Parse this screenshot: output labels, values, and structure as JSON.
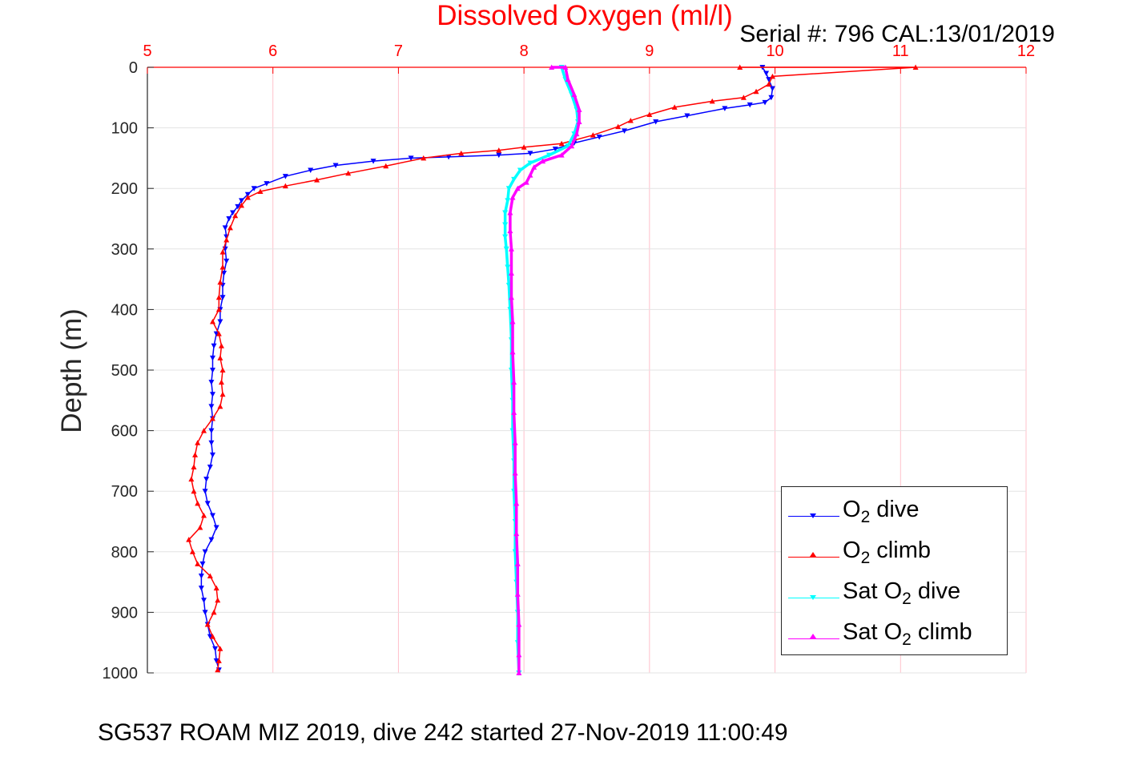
{
  "chart_data": {
    "type": "scatter",
    "title": "Dissolved Oxygen (ml/l)",
    "annotation": "Serial #: 796  CAL:13/01/2019",
    "caption": "SG537 ROAM MIZ 2019, dive 242 started 27-Nov-2019 11:00:49",
    "ylabel": "Depth (m)",
    "xlabel": "",
    "xlim": [
      5,
      12
    ],
    "ylim": [
      0,
      1000
    ],
    "y_reversed": true,
    "x_axis_position": "top",
    "x_ticks": [
      "5",
      "6",
      "7",
      "8",
      "9",
      "10",
      "11",
      "12"
    ],
    "y_ticks": [
      "0",
      "100",
      "200",
      "300",
      "400",
      "500",
      "600",
      "700",
      "800",
      "900",
      "1000"
    ],
    "grid": true,
    "legend_position": "bottom-right",
    "colors": {
      "title": "#ff0000",
      "x_ticks": "#ff0000",
      "grid": "#ffc0cb",
      "o2_dive": "#0000ff",
      "o2_climb": "#ff0000",
      "sat_dive": "#00ffff",
      "sat_climb": "#ff00ff"
    },
    "legend": [
      {
        "pre": "O",
        "sub": "2",
        "post": " dive"
      },
      {
        "pre": "O",
        "sub": "2",
        "post": " climb"
      },
      {
        "pre": "Sat O",
        "sub": "2",
        "post": " dive"
      },
      {
        "pre": "Sat O",
        "sub": "2",
        "post": " climb"
      }
    ],
    "series": [
      {
        "name": "O2 dive",
        "marker": "triangle-down",
        "points": [
          [
            9.9,
            0
          ],
          [
            9.93,
            10
          ],
          [
            9.95,
            20
          ],
          [
            9.98,
            35
          ],
          [
            9.97,
            50
          ],
          [
            9.92,
            58
          ],
          [
            9.8,
            62
          ],
          [
            9.6,
            68
          ],
          [
            9.3,
            80
          ],
          [
            9.05,
            90
          ],
          [
            8.8,
            105
          ],
          [
            8.6,
            115
          ],
          [
            8.4,
            125
          ],
          [
            8.25,
            135
          ],
          [
            8.05,
            142
          ],
          [
            7.8,
            145
          ],
          [
            7.4,
            148
          ],
          [
            7.1,
            150
          ],
          [
            6.8,
            155
          ],
          [
            6.5,
            162
          ],
          [
            6.3,
            170
          ],
          [
            6.1,
            180
          ],
          [
            5.95,
            192
          ],
          [
            5.85,
            200
          ],
          [
            5.8,
            210
          ],
          [
            5.75,
            220
          ],
          [
            5.72,
            230
          ],
          [
            5.68,
            240
          ],
          [
            5.65,
            250
          ],
          [
            5.62,
            265
          ],
          [
            5.63,
            280
          ],
          [
            5.62,
            300
          ],
          [
            5.63,
            320
          ],
          [
            5.61,
            340
          ],
          [
            5.6,
            360
          ],
          [
            5.6,
            380
          ],
          [
            5.58,
            400
          ],
          [
            5.58,
            420
          ],
          [
            5.55,
            440
          ],
          [
            5.53,
            460
          ],
          [
            5.52,
            480
          ],
          [
            5.52,
            500
          ],
          [
            5.51,
            520
          ],
          [
            5.52,
            540
          ],
          [
            5.51,
            560
          ],
          [
            5.52,
            580
          ],
          [
            5.51,
            600
          ],
          [
            5.51,
            620
          ],
          [
            5.52,
            640
          ],
          [
            5.5,
            660
          ],
          [
            5.47,
            680
          ],
          [
            5.46,
            700
          ],
          [
            5.48,
            720
          ],
          [
            5.52,
            740
          ],
          [
            5.55,
            760
          ],
          [
            5.51,
            780
          ],
          [
            5.46,
            800
          ],
          [
            5.44,
            820
          ],
          [
            5.43,
            840
          ],
          [
            5.43,
            860
          ],
          [
            5.45,
            880
          ],
          [
            5.46,
            900
          ],
          [
            5.48,
            920
          ],
          [
            5.5,
            940
          ],
          [
            5.54,
            960
          ],
          [
            5.55,
            980
          ],
          [
            5.57,
            995
          ]
        ]
      },
      {
        "name": "O2 climb",
        "marker": "triangle-up",
        "points": [
          [
            9.72,
            0
          ],
          [
            11.12,
            0
          ],
          [
            9.98,
            15
          ],
          [
            9.95,
            28
          ],
          [
            9.85,
            40
          ],
          [
            9.75,
            50
          ],
          [
            9.5,
            56
          ],
          [
            9.2,
            66
          ],
          [
            9.0,
            78
          ],
          [
            8.85,
            88
          ],
          [
            8.75,
            98
          ],
          [
            8.55,
            112
          ],
          [
            8.3,
            126
          ],
          [
            8.0,
            132
          ],
          [
            7.8,
            137
          ],
          [
            7.5,
            142
          ],
          [
            7.2,
            150
          ],
          [
            6.9,
            163
          ],
          [
            6.6,
            175
          ],
          [
            6.35,
            186
          ],
          [
            6.1,
            196
          ],
          [
            5.9,
            205
          ],
          [
            5.8,
            215
          ],
          [
            5.75,
            228
          ],
          [
            5.7,
            245
          ],
          [
            5.66,
            265
          ],
          [
            5.63,
            285
          ],
          [
            5.6,
            305
          ],
          [
            5.6,
            330
          ],
          [
            5.58,
            355
          ],
          [
            5.57,
            380
          ],
          [
            5.57,
            400
          ],
          [
            5.52,
            420
          ],
          [
            5.57,
            440
          ],
          [
            5.59,
            460
          ],
          [
            5.58,
            480
          ],
          [
            5.6,
            500
          ],
          [
            5.59,
            520
          ],
          [
            5.6,
            540
          ],
          [
            5.58,
            560
          ],
          [
            5.52,
            580
          ],
          [
            5.45,
            600
          ],
          [
            5.4,
            620
          ],
          [
            5.38,
            640
          ],
          [
            5.37,
            660
          ],
          [
            5.35,
            680
          ],
          [
            5.37,
            700
          ],
          [
            5.4,
            720
          ],
          [
            5.45,
            740
          ],
          [
            5.42,
            760
          ],
          [
            5.33,
            780
          ],
          [
            5.36,
            800
          ],
          [
            5.4,
            820
          ],
          [
            5.5,
            840
          ],
          [
            5.55,
            860
          ],
          [
            5.56,
            880
          ],
          [
            5.53,
            900
          ],
          [
            5.48,
            920
          ],
          [
            5.52,
            940
          ],
          [
            5.58,
            960
          ],
          [
            5.57,
            980
          ],
          [
            5.56,
            995
          ]
        ]
      },
      {
        "name": "Sat O2 dive",
        "marker": "triangle-down",
        "points": [
          [
            8.3,
            0
          ],
          [
            8.33,
            20
          ],
          [
            8.38,
            45
          ],
          [
            8.42,
            70
          ],
          [
            8.43,
            90
          ],
          [
            8.4,
            110
          ],
          [
            8.35,
            130
          ],
          [
            8.2,
            145
          ],
          [
            8.05,
            158
          ],
          [
            7.97,
            170
          ],
          [
            7.92,
            185
          ],
          [
            7.88,
            200
          ],
          [
            7.87,
            220
          ],
          [
            7.85,
            240
          ],
          [
            7.85,
            260
          ],
          [
            7.85,
            280
          ],
          [
            7.86,
            300
          ],
          [
            7.87,
            330
          ],
          [
            7.88,
            360
          ],
          [
            7.89,
            400
          ],
          [
            7.9,
            450
          ],
          [
            7.9,
            500
          ],
          [
            7.91,
            550
          ],
          [
            7.91,
            600
          ],
          [
            7.92,
            650
          ],
          [
            7.92,
            700
          ],
          [
            7.93,
            750
          ],
          [
            7.93,
            800
          ],
          [
            7.94,
            850
          ],
          [
            7.95,
            900
          ],
          [
            7.95,
            950
          ],
          [
            7.96,
            1000
          ]
        ]
      },
      {
        "name": "Sat O2 climb",
        "marker": "triangle-up",
        "points": [
          [
            8.22,
            0
          ],
          [
            8.33,
            0
          ],
          [
            8.35,
            20
          ],
          [
            8.4,
            45
          ],
          [
            8.44,
            70
          ],
          [
            8.44,
            90
          ],
          [
            8.42,
            110
          ],
          [
            8.38,
            130
          ],
          [
            8.3,
            145
          ],
          [
            8.15,
            155
          ],
          [
            8.08,
            165
          ],
          [
            8.05,
            178
          ],
          [
            8.02,
            190
          ],
          [
            7.95,
            200
          ],
          [
            7.91,
            215
          ],
          [
            7.89,
            240
          ],
          [
            7.89,
            270
          ],
          [
            7.9,
            300
          ],
          [
            7.9,
            340
          ],
          [
            7.9,
            380
          ],
          [
            7.91,
            420
          ],
          [
            7.91,
            470
          ],
          [
            7.92,
            520
          ],
          [
            7.92,
            570
          ],
          [
            7.93,
            620
          ],
          [
            7.93,
            670
          ],
          [
            7.94,
            720
          ],
          [
            7.94,
            770
          ],
          [
            7.95,
            820
          ],
          [
            7.95,
            870
          ],
          [
            7.96,
            920
          ],
          [
            7.96,
            970
          ],
          [
            7.96,
            1000
          ]
        ]
      }
    ]
  }
}
